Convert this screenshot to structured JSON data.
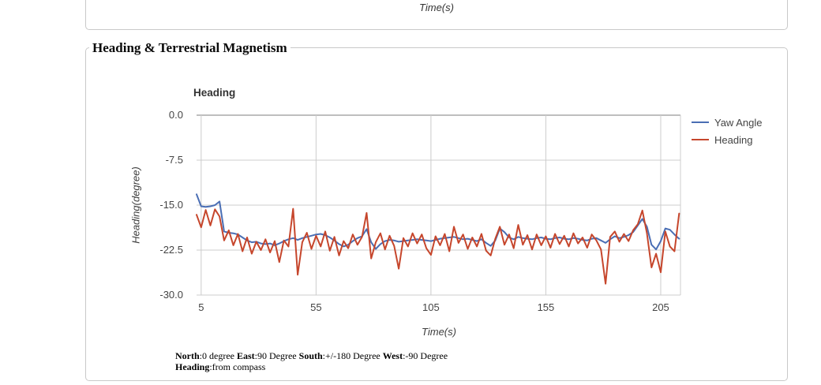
{
  "top_panel": {
    "xlabel": "Time(s)"
  },
  "panel": {
    "title": "Heading & Terrestrial Magnetism"
  },
  "colors": {
    "grid": "#cccccc",
    "baseline": "#7d7d7d",
    "tick_text": "#444444",
    "panel_border": "#c9c9c9",
    "yaw_blue": "#4a6eb4",
    "heading_red": "#c6462c"
  },
  "chart_data": {
    "type": "line",
    "title": "Heading",
    "xlabel": "Time(s)",
    "ylabel": "Heading(degree)",
    "xlim": [
      3,
      213.6
    ],
    "ylim": [
      -30,
      0
    ],
    "xticks": [
      5,
      55,
      105,
      155,
      205
    ],
    "ytick_labels": [
      "0.0",
      "-7.5",
      "-15.0",
      "-22.5",
      "-30.0"
    ],
    "grid": true,
    "legend_position": "right",
    "x": [
      3,
      5,
      7,
      9,
      11,
      13,
      15,
      17,
      19,
      21,
      23,
      25,
      27,
      29,
      31,
      33,
      35,
      37,
      39,
      41,
      43,
      45,
      47,
      49,
      51,
      53,
      55,
      57,
      59,
      61,
      63,
      65,
      67,
      69,
      71,
      73,
      75,
      77,
      79,
      81,
      83,
      85,
      87,
      89,
      91,
      93,
      95,
      97,
      99,
      101,
      103,
      105,
      107,
      109,
      111,
      113,
      115,
      117,
      119,
      121,
      123,
      125,
      127,
      129,
      131,
      133,
      135,
      137,
      139,
      141,
      143,
      145,
      147,
      149,
      151,
      153,
      155,
      157,
      159,
      161,
      163,
      165,
      167,
      169,
      171,
      173,
      175,
      177,
      179,
      181,
      183,
      185,
      187,
      189,
      191,
      193,
      195,
      197,
      199,
      201,
      203,
      205,
      207,
      209,
      211,
      213
    ],
    "series": [
      {
        "name": "Yaw Angle",
        "color": "#4a6eb4",
        "values": [
          -13.2,
          -15.2,
          -15.3,
          -15.2,
          -15.0,
          -14.4,
          -19.4,
          -19.6,
          -19.7,
          -19.9,
          -20.4,
          -20.9,
          -21.2,
          -21.1,
          -21.4,
          -21.5,
          -21.4,
          -21.7,
          -21.4,
          -21.0,
          -20.7,
          -20.5,
          -20.8,
          -20.5,
          -20.3,
          -20.1,
          -19.9,
          -19.8,
          -20.0,
          -20.4,
          -20.9,
          -21.5,
          -21.9,
          -21.6,
          -21.0,
          -20.5,
          -20.2,
          -19.0,
          -21.2,
          -22.3,
          -21.5,
          -21.0,
          -20.8,
          -20.9,
          -21.1,
          -21.0,
          -20.9,
          -20.8,
          -20.7,
          -20.8,
          -20.9,
          -21.0,
          -20.8,
          -20.6,
          -20.5,
          -20.4,
          -20.3,
          -20.5,
          -20.7,
          -20.6,
          -20.8,
          -21.0,
          -20.7,
          -21.3,
          -21.8,
          -20.9,
          -18.9,
          -19.5,
          -20.4,
          -20.7,
          -20.3,
          -20.5,
          -20.6,
          -20.7,
          -20.5,
          -20.4,
          -20.6,
          -20.7,
          -20.5,
          -20.4,
          -20.6,
          -20.7,
          -20.5,
          -20.6,
          -20.8,
          -20.9,
          -20.6,
          -20.5,
          -20.9,
          -21.3,
          -20.7,
          -20.2,
          -20.5,
          -20.3,
          -20.0,
          -19.5,
          -18.4,
          -17.3,
          -18.6,
          -21.6,
          -22.4,
          -21.0,
          -18.9,
          -19.1,
          -19.9,
          -20.6
        ]
      },
      {
        "name": "Heading",
        "color": "#c6462c",
        "values": [
          -16.6,
          -18.7,
          -15.8,
          -18.4,
          -15.7,
          -16.9,
          -20.9,
          -19.2,
          -21.7,
          -19.8,
          -22.7,
          -20.4,
          -23.1,
          -21.1,
          -22.5,
          -20.7,
          -22.9,
          -21.0,
          -24.5,
          -20.9,
          -21.9,
          -15.6,
          -26.6,
          -21.2,
          -19.6,
          -22.3,
          -20.1,
          -21.9,
          -19.4,
          -22.6,
          -20.3,
          -23.4,
          -21.0,
          -22.2,
          -19.9,
          -21.6,
          -20.3,
          -16.3,
          -23.9,
          -21.2,
          -19.7,
          -22.4,
          -20.1,
          -21.8,
          -25.6,
          -20.5,
          -21.9,
          -19.7,
          -21.4,
          -19.9,
          -22.2,
          -23.3,
          -20.2,
          -21.7,
          -19.8,
          -22.7,
          -18.6,
          -21.3,
          -19.9,
          -22.3,
          -20.4,
          -21.9,
          -19.8,
          -22.6,
          -23.4,
          -20.6,
          -18.6,
          -21.6,
          -19.9,
          -22.2,
          -18.3,
          -21.6,
          -20.0,
          -22.4,
          -19.9,
          -21.7,
          -20.2,
          -22.1,
          -19.8,
          -21.5,
          -20.1,
          -21.9,
          -19.7,
          -21.4,
          -20.4,
          -22.1,
          -19.9,
          -20.9,
          -22.4,
          -28.1,
          -20.3,
          -19.4,
          -21.1,
          -19.8,
          -21.0,
          -19.2,
          -18.2,
          -15.9,
          -19.7,
          -25.4,
          -23.1,
          -26.2,
          -19.4,
          -21.9,
          -22.7,
          -16.4
        ]
      }
    ]
  },
  "footnote": {
    "lines": [
      [
        {
          "text": "North",
          "bold": true
        },
        {
          "text": ":0 degree ",
          "bold": false
        },
        {
          "text": "East",
          "bold": true
        },
        {
          "text": ":90 Degree ",
          "bold": false
        },
        {
          "text": "South",
          "bold": true
        },
        {
          "text": ":+/-180 Degree ",
          "bold": false
        },
        {
          "text": "West",
          "bold": true
        },
        {
          "text": ":-90 Degree",
          "bold": false
        }
      ],
      [
        {
          "text": "Heading",
          "bold": true
        },
        {
          "text": ":from compass",
          "bold": false
        }
      ]
    ]
  }
}
